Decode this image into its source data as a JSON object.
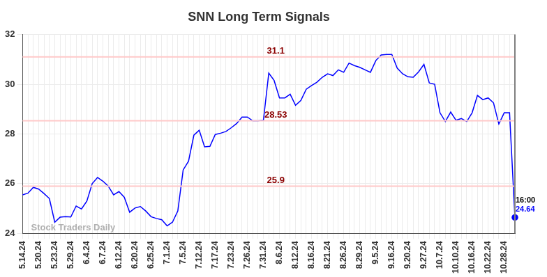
{
  "chart_data": {
    "type": "line",
    "title": "SNN Long Term Signals",
    "categories": [
      "5.14.24",
      null,
      null,
      "5.20.24",
      null,
      null,
      "5.23.24",
      null,
      null,
      "5.29.24",
      null,
      null,
      "6.4.24",
      null,
      null,
      "6.7.24",
      null,
      null,
      "6.12.24",
      null,
      null,
      "6.20.24",
      null,
      null,
      "6.25.24",
      null,
      null,
      "7.1.24",
      null,
      null,
      "7.5.24",
      null,
      null,
      "7.12.24",
      null,
      null,
      "7.17.24",
      null,
      null,
      "7.23.24",
      null,
      null,
      "7.26.24",
      null,
      null,
      "7.31.24",
      null,
      null,
      "8.6.24",
      null,
      null,
      "8.12.24",
      null,
      null,
      "8.16.24",
      null,
      null,
      "8.21.24",
      null,
      null,
      "8.26.24",
      null,
      null,
      "8.29.24",
      null,
      null,
      "9.5.24",
      null,
      null,
      "9.16.24",
      null,
      null,
      "9.20.24",
      null,
      null,
      "9.27.24",
      null,
      null,
      "10.7.24",
      null,
      null,
      "10.10.24",
      null,
      null,
      "10.16.24",
      null,
      null,
      "10.22.24",
      null,
      null,
      "10.28.24",
      null,
      null
    ],
    "values": [
      25.55,
      25.62,
      25.85,
      25.78,
      25.6,
      25.4,
      24.45,
      24.65,
      24.67,
      24.66,
      25.1,
      24.98,
      25.3,
      26.0,
      26.25,
      26.1,
      25.9,
      25.55,
      25.68,
      25.45,
      24.85,
      25.02,
      25.08,
      24.9,
      24.67,
      24.6,
      24.55,
      24.3,
      24.45,
      24.9,
      26.55,
      26.9,
      27.95,
      28.15,
      27.48,
      27.5,
      27.98,
      28.03,
      28.1,
      28.25,
      28.42,
      28.68,
      28.68,
      28.53,
      28.53,
      28.55,
      30.45,
      30.15,
      29.45,
      29.45,
      29.6,
      29.15,
      29.35,
      29.8,
      29.95,
      30.08,
      30.28,
      30.42,
      30.35,
      30.58,
      30.48,
      30.85,
      30.75,
      30.68,
      30.58,
      30.48,
      30.95,
      31.18,
      31.2,
      31.2,
      30.65,
      30.42,
      30.3,
      30.28,
      30.5,
      30.8,
      30.05,
      30.0,
      28.85,
      28.5,
      28.88,
      28.55,
      28.62,
      28.5,
      28.85,
      29.55,
      29.38,
      29.45,
      29.25,
      28.4,
      28.85,
      28.85,
      24.64
    ],
    "color": "#0000ff",
    "ylim": [
      24,
      32
    ],
    "yticks": [
      24,
      26,
      28,
      30,
      32
    ],
    "grid": true,
    "reference_lines": [
      31.1,
      28.53,
      25.9
    ],
    "last_point_time": "16:00",
    "watermark": "Stock Traders Daily"
  }
}
